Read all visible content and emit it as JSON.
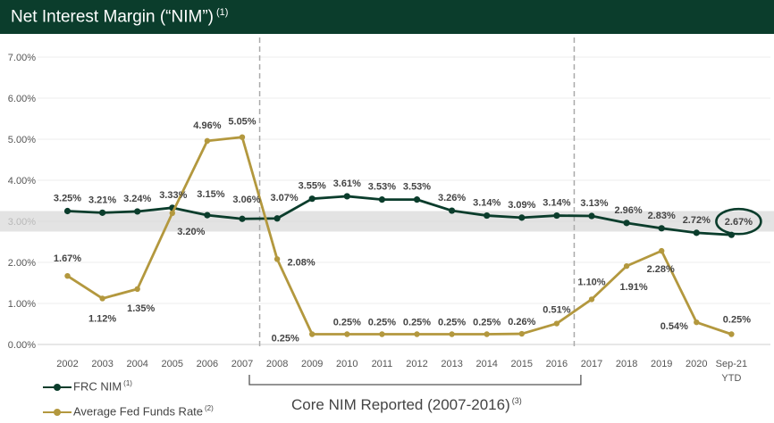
{
  "header": {
    "title": "Net Interest Margin (“NIM”)",
    "footnote": "(1)"
  },
  "chart_data": {
    "type": "line",
    "title": "Net Interest Margin (“NIM”)",
    "x": [
      "2002",
      "2003",
      "2004",
      "2005",
      "2006",
      "2007",
      "2008",
      "2009",
      "2010",
      "2011",
      "2012",
      "2013",
      "2014",
      "2015",
      "2016",
      "2017",
      "2018",
      "2019",
      "2020",
      "Sep-21 YTD"
    ],
    "x_tick_labels": [
      [
        "2002"
      ],
      [
        "2003"
      ],
      [
        "2004"
      ],
      [
        "2005"
      ],
      [
        "2006"
      ],
      [
        "2007"
      ],
      [
        "2008"
      ],
      [
        "2009"
      ],
      [
        "2010"
      ],
      [
        "2011"
      ],
      [
        "2012"
      ],
      [
        "2013"
      ],
      [
        "2014"
      ],
      [
        "2015"
      ],
      [
        "2016"
      ],
      [
        "2017"
      ],
      [
        "2018"
      ],
      [
        "2019"
      ],
      [
        "2020"
      ],
      [
        "Sep-21",
        "YTD"
      ]
    ],
    "y_ticks": [
      "0.00%",
      "1.00%",
      "2.00%",
      "3.00%",
      "4.00%",
      "5.00%",
      "6.00%",
      "7.00%"
    ],
    "ylim": [
      0,
      7
    ],
    "grid": true,
    "band": [
      2.75,
      3.25
    ],
    "series": [
      {
        "name": "FRC NIM",
        "footnote": "(1)",
        "color": "#0b3d2c",
        "values": [
          3.25,
          3.21,
          3.24,
          3.33,
          3.15,
          3.06,
          3.07,
          3.55,
          3.61,
          3.53,
          3.53,
          3.26,
          3.14,
          3.09,
          3.14,
          3.13,
          2.96,
          2.83,
          2.72,
          2.67
        ],
        "labels": [
          "3.25%",
          "3.21%",
          "3.24%",
          "3.33%",
          "3.15%",
          "3.06%",
          "3.07%",
          "3.55%",
          "3.61%",
          "3.53%",
          "3.53%",
          "3.26%",
          "3.14%",
          "3.09%",
          "3.14%",
          "3.13%",
          "2.96%",
          "2.83%",
          "2.72%",
          "2.67%"
        ]
      },
      {
        "name": "Average Fed Funds Rate",
        "footnote": "(2)",
        "color": "#b3983e",
        "values": [
          1.67,
          1.12,
          1.35,
          3.2,
          4.96,
          5.05,
          2.08,
          0.25,
          0.25,
          0.25,
          0.25,
          0.25,
          0.25,
          0.26,
          0.51,
          1.1,
          1.91,
          2.28,
          0.54,
          0.25
        ],
        "labels": [
          "1.67%",
          "1.12%",
          "1.35%",
          "3.20%",
          "4.96%",
          "5.05%",
          "2.08%",
          "0.25%",
          "0.25%",
          "0.25%",
          "0.25%",
          "0.25%",
          "0.25%",
          "0.26%",
          "0.51%",
          "1.10%",
          "1.91%",
          "2.28%",
          "0.54%",
          "0.25%"
        ]
      }
    ],
    "annotation": {
      "text": "Core NIM Reported (2007-2016)",
      "footnote": "(3)",
      "from": "2007",
      "to": "2016"
    },
    "highlight": "Sep-21 YTD",
    "legend_position": "bottom-left"
  },
  "legend": {
    "frc": {
      "label": "FRC NIM",
      "footnote": "(1)"
    },
    "fed": {
      "label": "Average Fed Funds Rate",
      "footnote": "(2)"
    }
  }
}
